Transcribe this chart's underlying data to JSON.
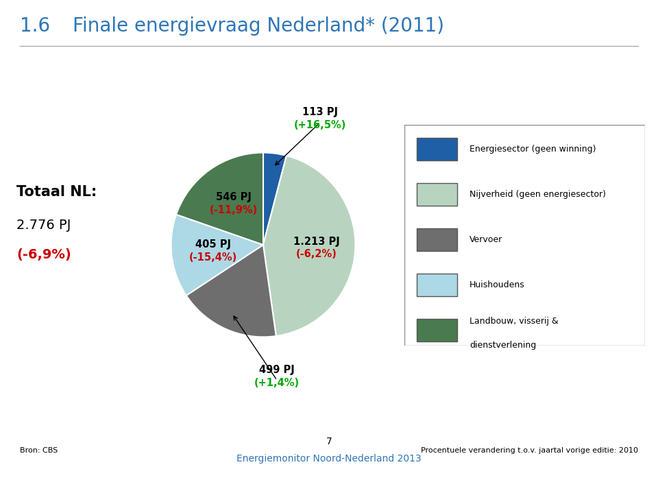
{
  "title_number": "1.6",
  "title_text": "Finale energievraag Nederland* (2011)",
  "title_color": "#2E75B6",
  "title_fontsize": 20,
  "total_label": "Totaal NL:",
  "total_value": "2.776 PJ",
  "total_pct": "(-6,9%)",
  "total_pct_color": "#CC0000",
  "slices": [
    {
      "label": "Energiesector (geen winning)",
      "value": 113,
      "pj": "113 PJ",
      "pct": "(+16,5%)",
      "color": "#1F5FA6",
      "pct_color": "#00AA00"
    },
    {
      "label": "Nijverheid (geen energiesector)",
      "value": 1213,
      "pj": "1.213 PJ",
      "pct": "(-6,2%)",
      "color": "#B8D4C0",
      "pct_color": "#CC0000"
    },
    {
      "label": "Vervoer",
      "value": 499,
      "pj": "499 PJ",
      "pct": "(+1,4%)",
      "color": "#6E6E6E",
      "pct_color": "#00AA00"
    },
    {
      "label": "Huishoudens",
      "value": 405,
      "pj": "405 PJ",
      "pct": "(-15,4%)",
      "color": "#ADD8E6",
      "pct_color": "#CC0000"
    },
    {
      "label": "Landbouw, visserij &\ndienstverlening",
      "value": 546,
      "pj": "546 PJ",
      "pct": "(-11,9%)",
      "color": "#4A7A50",
      "pct_color": "#CC0000"
    }
  ],
  "legend_entries": [
    {
      "label": "Energiesector (geen winning)",
      "color": "#1F5FA6"
    },
    {
      "label": "Nijverheid (geen energiesector)",
      "color": "#B8D4C0"
    },
    {
      "label": "Vervoer",
      "color": "#6E6E6E"
    },
    {
      "label": "Huishoudens",
      "color": "#ADD8E6"
    },
    {
      "label": "Landbouw, visserij &\ndienstverlening",
      "color": "#4A7A50"
    }
  ],
  "source_text": "Bron: CBS",
  "footer_text": "Procentuele verandering t.o.v. jaartal vorige editie: 2010",
  "page_number": "7",
  "bottom_center": "Energiemonitor Noord-Nederland 2013",
  "background_color": "#FFFFFF"
}
